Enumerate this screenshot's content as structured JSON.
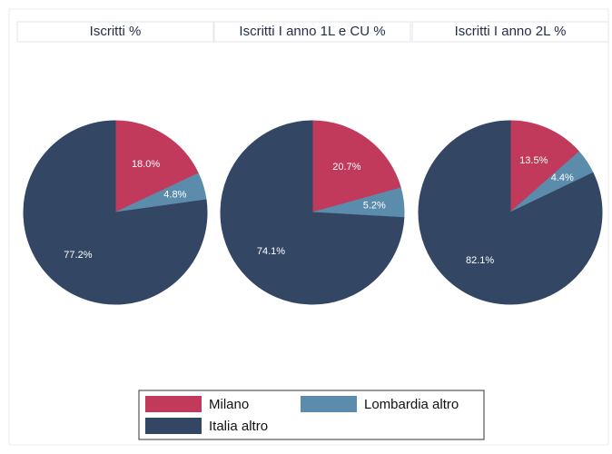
{
  "chart_data": [
    {
      "type": "pie",
      "title": "Iscritti %",
      "categories": [
        "Milano",
        "Lombardia altro",
        "Italia altro"
      ],
      "values": [
        18.0,
        4.8,
        77.2
      ],
      "value_labels": [
        "18.0%",
        "4.8%",
        "77.2%"
      ],
      "colors": [
        "#c23a5b",
        "#5b8cac",
        "#334663"
      ]
    },
    {
      "type": "pie",
      "title": "Iscritti I anno 1L e CU %",
      "categories": [
        "Milano",
        "Lombardia altro",
        "Italia altro"
      ],
      "values": [
        20.7,
        5.2,
        74.1
      ],
      "value_labels": [
        "20.7%",
        "5.2%",
        "74.1%"
      ],
      "colors": [
        "#c23a5b",
        "#5b8cac",
        "#334663"
      ]
    },
    {
      "type": "pie",
      "title": "Iscritti I anno 2L %",
      "categories": [
        "Milano",
        "Lombardia altro",
        "Italia altro"
      ],
      "values": [
        13.5,
        4.4,
        82.1
      ],
      "value_labels": [
        "13.5%",
        "4.4%",
        "82.1%"
      ],
      "colors": [
        "#c23a5b",
        "#5b8cac",
        "#334663"
      ]
    }
  ]
}
